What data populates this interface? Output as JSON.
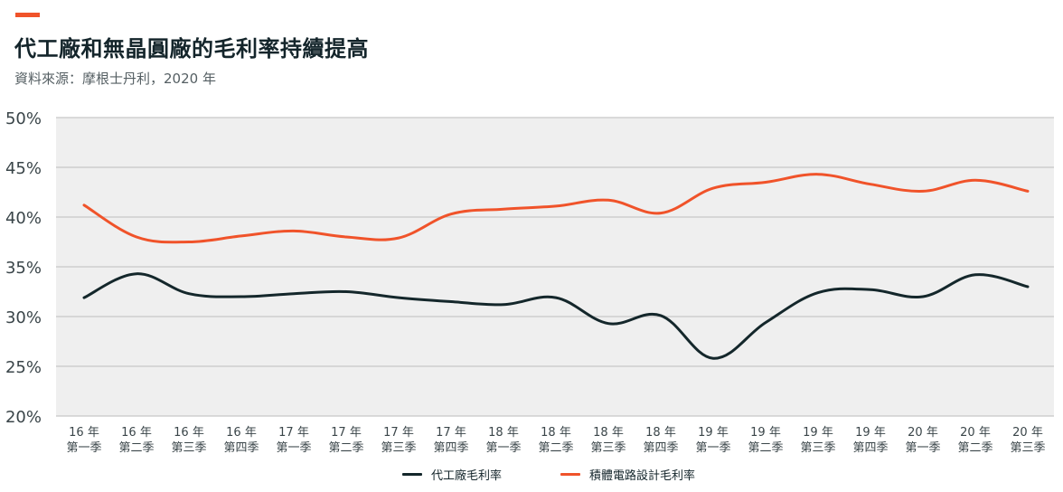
{
  "title": "代工廠和無晶圓廠的毛利率持續提高",
  "subtitle": "資料來源：摩根士丹利，2020 年",
  "colors": {
    "accent": "#f0532a",
    "plot_bg": "#efefef",
    "grid": "#c6c6c6",
    "series1": "#14272b",
    "series2": "#f0532a"
  },
  "chart_data": {
    "type": "line",
    "x": [
      [
        "16 年",
        "第一季"
      ],
      [
        "16 年",
        "第二季"
      ],
      [
        "16 年",
        "第三季"
      ],
      [
        "16 年",
        "第四季"
      ],
      [
        "17 年",
        "第一季"
      ],
      [
        "17 年",
        "第二季"
      ],
      [
        "17 年",
        "第三季"
      ],
      [
        "17 年",
        "第四季"
      ],
      [
        "18 年",
        "第一季"
      ],
      [
        "18 年",
        "第二季"
      ],
      [
        "18 年",
        "第三季"
      ],
      [
        "18 年",
        "第四季"
      ],
      [
        "19 年",
        "第一季"
      ],
      [
        "19 年",
        "第二季"
      ],
      [
        "19 年",
        "第三季"
      ],
      [
        "19 年",
        "第四季"
      ],
      [
        "20 年",
        "第一季"
      ],
      [
        "20 年",
        "第二季"
      ],
      [
        "20 年",
        "第三季"
      ]
    ],
    "ylim": [
      20,
      50
    ],
    "yticks": [
      20,
      25,
      30,
      35,
      40,
      45,
      50
    ],
    "ytick_labels": [
      "20%",
      "25%",
      "30%",
      "35%",
      "40%",
      "45%",
      "50%"
    ],
    "grid": true,
    "legend_position": "bottom-center",
    "series": [
      {
        "name": "代工廠毛利率",
        "color": "#14272b",
        "values": [
          31.9,
          34.3,
          32.3,
          32.0,
          32.3,
          32.5,
          31.9,
          31.5,
          31.2,
          31.9,
          29.3,
          30.1,
          25.8,
          29.4,
          32.4,
          32.7,
          32.0,
          34.2,
          33.0
        ]
      },
      {
        "name": "積體電路設計毛利率",
        "color": "#f0532a",
        "values": [
          41.2,
          38.0,
          37.5,
          38.1,
          38.6,
          38.0,
          37.9,
          40.3,
          40.8,
          41.1,
          41.7,
          40.4,
          42.9,
          43.5,
          44.3,
          43.3,
          42.6,
          43.7,
          42.6
        ]
      }
    ]
  }
}
